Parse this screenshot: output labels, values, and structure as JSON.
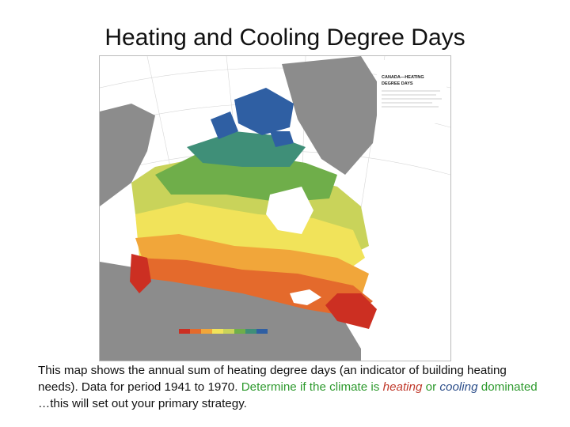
{
  "slide": {
    "title": "Heating and Cooling Degree Days"
  },
  "map": {
    "legend_title_line1": "CANADA—HEATING",
    "legend_title_line2": "DEGREE DAYS",
    "colors": {
      "land_gray": "#8c8c8c",
      "ocean": "#ffffff",
      "deep_blue": "#2f5fa3",
      "blue_green": "#3f8f78",
      "green": "#6fae4a",
      "yellow_green": "#c9d35a",
      "yellow": "#f1e35a",
      "orange": "#f1a63a",
      "red_orange": "#e46a2c",
      "red": "#cc2f22"
    }
  },
  "caption": {
    "part1": "This map shows the annual sum of heating degree days (an indicator of building heating needs). Data for period 1941 to 1970. ",
    "part2": "Determine if the climate is ",
    "heating": "heating",
    "or": " or",
    "cooling": "cooling",
    "dominated": " dominated",
    "part3": " …this will set out your primary strategy."
  }
}
